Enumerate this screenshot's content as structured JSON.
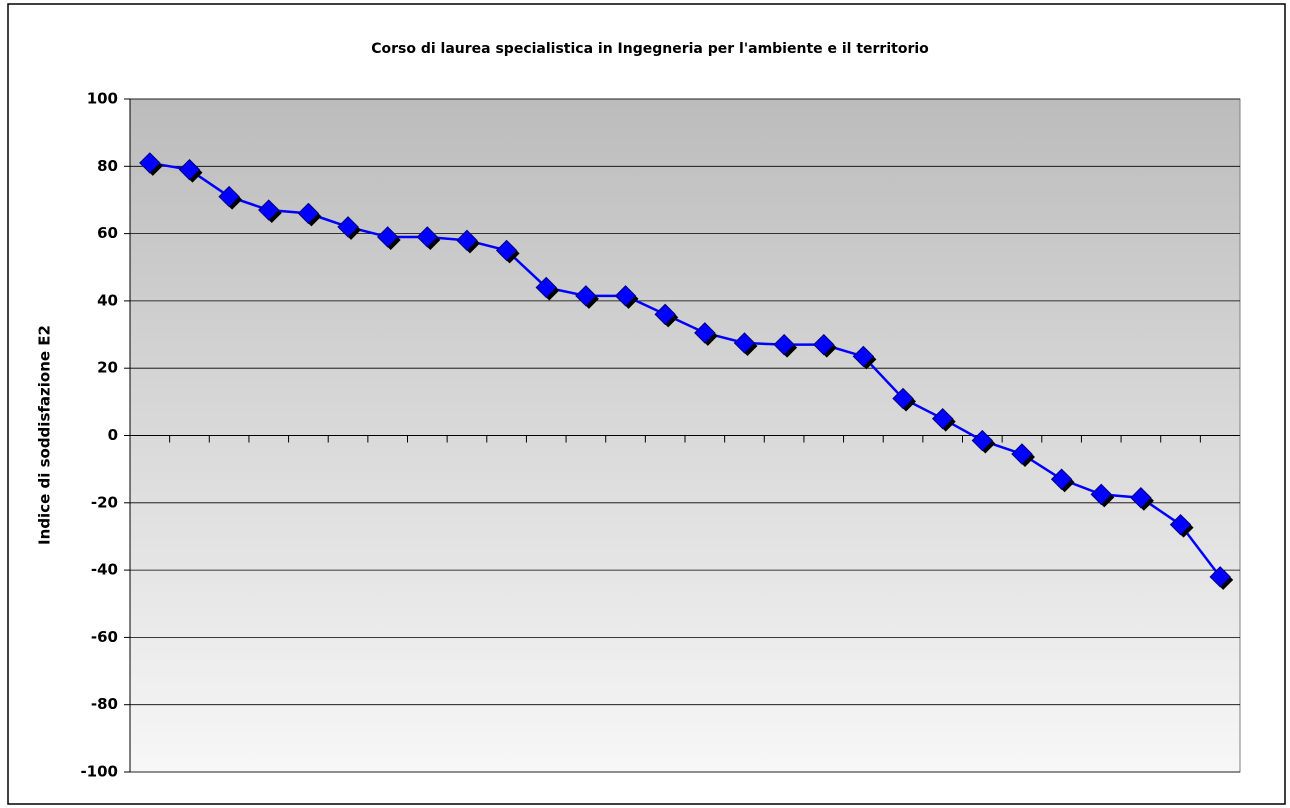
{
  "chart_data": {
    "type": "line",
    "title": "Corso di laurea specialistica in Ingegneria per l'ambiente e il territorio",
    "ylabel": "Indice di soddisfazione E2",
    "categories": [
      null,
      null,
      null,
      null,
      null,
      null,
      null,
      null,
      null,
      null,
      null,
      null,
      null,
      null,
      null,
      null,
      null,
      null,
      null,
      null,
      null,
      null,
      null,
      null,
      null,
      null,
      null,
      null
    ],
    "values": [
      81,
      79,
      71,
      67,
      66,
      62,
      59,
      59,
      58,
      55,
      44,
      41.5,
      41.5,
      36,
      30.5,
      27.5,
      27,
      27,
      23.5,
      11,
      5,
      -1.5,
      -5.5,
      -13,
      -17.5,
      -18.5,
      -26.5,
      -42
    ],
    "color": "#0000ff",
    "ylim": [
      -100,
      100
    ],
    "yticks": [
      -100,
      -80,
      -60,
      -40,
      -20,
      0,
      20,
      40,
      60,
      80,
      100
    ],
    "grid": true
  }
}
